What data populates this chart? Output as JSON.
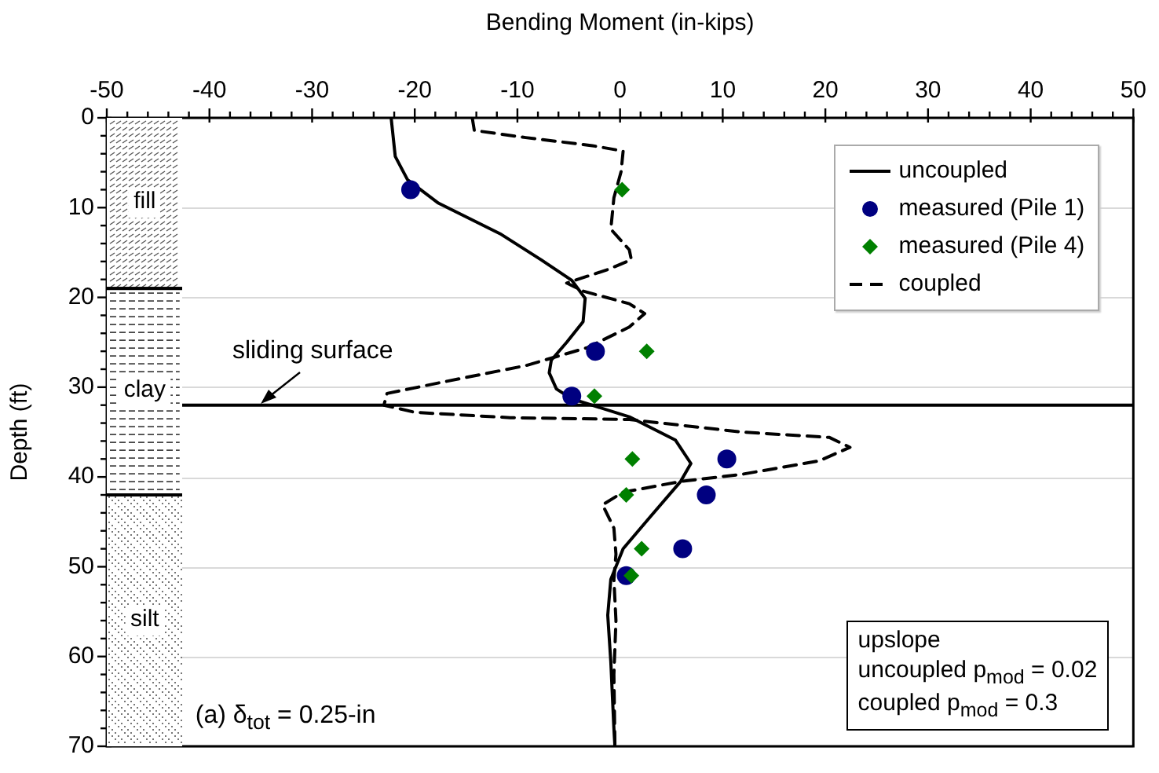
{
  "chart_data": {
    "type": "line",
    "xlabel": "Bending Moment (in-kips)",
    "ylabel": "Depth (ft)",
    "xlim": [
      -50,
      50
    ],
    "xticks": [
      -50,
      {
        "value": -48,
        "label": null
      },
      {
        "value": -46,
        "label": null
      },
      {
        "value": -44,
        "label": null
      },
      {
        "value": -42,
        "label": null
      },
      -40,
      {
        "value": -38,
        "label": null
      },
      {
        "value": -36,
        "label": null
      },
      {
        "value": -34,
        "label": null
      },
      {
        "value": -32,
        "label": null
      },
      -30,
      {
        "value": -28,
        "label": null
      },
      {
        "value": -26,
        "label": null
      },
      {
        "value": -24,
        "label": null
      },
      {
        "value": -22,
        "label": null
      },
      -20,
      {
        "value": -18,
        "label": null
      },
      {
        "value": -16,
        "label": null
      },
      {
        "value": -14,
        "label": null
      },
      {
        "value": -12,
        "label": null
      },
      -10,
      {
        "value": -8,
        "label": null
      },
      {
        "value": -6,
        "label": null
      },
      {
        "value": -4,
        "label": null
      },
      {
        "value": -2,
        "label": null
      },
      0,
      {
        "value": 2,
        "label": null
      },
      {
        "value": 4,
        "label": null
      },
      {
        "value": 6,
        "label": null
      },
      {
        "value": 8,
        "label": null
      },
      10,
      {
        "value": 12,
        "label": null
      },
      {
        "value": 14,
        "label": null
      },
      {
        "value": 16,
        "label": null
      },
      {
        "value": 18,
        "label": null
      },
      20,
      {
        "value": 22,
        "label": null
      },
      {
        "value": 24,
        "label": null
      },
      {
        "value": 26,
        "label": null
      },
      {
        "value": 28,
        "label": null
      },
      30,
      {
        "value": 32,
        "label": null
      },
      {
        "value": 34,
        "label": null
      },
      {
        "value": 36,
        "label": null
      },
      {
        "value": 38,
        "label": null
      },
      40,
      {
        "value": 42,
        "label": null
      },
      {
        "value": 44,
        "label": null
      },
      {
        "value": 46,
        "label": null
      },
      {
        "value": 48,
        "label": null
      },
      50
    ],
    "ylim": [
      70,
      0
    ],
    "yticks": [
      0,
      {
        "value": 2,
        "label": null
      },
      {
        "value": 4,
        "label": null
      },
      {
        "value": 6,
        "label": null
      },
      {
        "value": 8,
        "label": null
      },
      10,
      {
        "value": 12,
        "label": null
      },
      {
        "value": 14,
        "label": null
      },
      {
        "value": 16,
        "label": null
      },
      {
        "value": 18,
        "label": null
      },
      20,
      {
        "value": 22,
        "label": null
      },
      {
        "value": 24,
        "label": null
      },
      {
        "value": 26,
        "label": null
      },
      {
        "value": 28,
        "label": null
      },
      30,
      {
        "value": 32,
        "label": null
      },
      {
        "value": 34,
        "label": null
      },
      {
        "value": 36,
        "label": null
      },
      {
        "value": 38,
        "label": null
      },
      40,
      {
        "value": 42,
        "label": null
      },
      {
        "value": 44,
        "label": null
      },
      {
        "value": 46,
        "label": null
      },
      {
        "value": 48,
        "label": null
      },
      50,
      {
        "value": 52,
        "label": null
      },
      {
        "value": 54,
        "label": null
      },
      {
        "value": 56,
        "label": null
      },
      {
        "value": 58,
        "label": null
      },
      60,
      {
        "value": 62,
        "label": null
      },
      {
        "value": 64,
        "label": null
      },
      {
        "value": 66,
        "label": null
      },
      {
        "value": 68,
        "label": null
      },
      70
    ],
    "grid": "y",
    "legend": "top right",
    "series": [
      {
        "name": "uncoupled",
        "color": "#000000",
        "marker": "none",
        "line_style": "solid",
        "x": [
          -22.3,
          -21.9,
          -20.7,
          -17.7,
          -11.7,
          -7.7,
          -4.7,
          -3.4,
          -3.6,
          -5.2,
          -6.7,
          -6.9,
          -6.2,
          -4.7,
          0.9,
          5.4,
          6.9,
          5.9,
          2.9,
          0.3,
          -0.9,
          -1.2,
          -0.9,
          -0.6,
          -0.5
        ],
        "values": [
          0,
          4.3,
          6.9,
          9.5,
          12.9,
          15.8,
          18.1,
          20.1,
          22.7,
          25,
          27,
          28.4,
          30.2,
          31.3,
          33.3,
          35.9,
          38.5,
          40.5,
          44.5,
          48,
          51.4,
          55.4,
          60.6,
          68,
          70
        ]
      },
      {
        "name": "measured (Pile 1)",
        "type": "scatter",
        "color": "#000080",
        "marker": "circle",
        "x": [
          -20.4,
          -2.4,
          -4.7,
          10.4,
          8.4,
          6.1,
          0.6
        ],
        "values": [
          8,
          26,
          31,
          38,
          42,
          48,
          51
        ]
      },
      {
        "name": "measured (Pile 4)",
        "type": "scatter",
        "color": "#008000",
        "marker": "diamond",
        "x": [
          0.2,
          2.6,
          -2.5,
          1.2,
          0.6,
          2.1,
          1.1
        ],
        "values": [
          8,
          26,
          31,
          38,
          42,
          48,
          51
        ]
      },
      {
        "name": "coupled",
        "color": "#000000",
        "marker": "none",
        "line_style": "dashed",
        "x": [
          -14.4,
          -14.2,
          -9.2,
          -2.7,
          0.3,
          0.1,
          -0.6,
          -0.9,
          0.9,
          1.1,
          -1.2,
          -5.2,
          -3.6,
          0.9,
          2.4,
          0.9,
          -3.2,
          -9.2,
          -16.7,
          -22.7,
          -23,
          -20,
          -10.7,
          0.9,
          11.9,
          20.4,
          22.4,
          19.4,
          11.9,
          5.9,
          0.3,
          -1.7,
          -0.6,
          -0.4,
          -0.6,
          -0.4,
          -0.6,
          -0.5
        ],
        "values": [
          0,
          1.4,
          2.2,
          3.1,
          3.7,
          6,
          8.9,
          12.4,
          14.7,
          15.8,
          16.9,
          18.4,
          19.3,
          20.7,
          21.8,
          23.3,
          25.6,
          27.6,
          29.3,
          30.7,
          32,
          32.8,
          33.4,
          33.6,
          35,
          35.6,
          36.7,
          38.2,
          39.7,
          40.5,
          41.7,
          43.1,
          45.7,
          48.6,
          51.4,
          56,
          62,
          70
        ]
      }
    ],
    "ref_lines": [
      {
        "axis": "y",
        "value": 32,
        "label": "sliding surface",
        "color": "#000000"
      }
    ],
    "bands": [
      {
        "axis": "y",
        "from": 0,
        "to": 19,
        "label": "fill"
      },
      {
        "axis": "y",
        "from": 19,
        "to": 42,
        "label": "clay"
      },
      {
        "axis": "y",
        "from": 42,
        "to": 70,
        "label": "silt"
      }
    ],
    "annotations": [
      "(a) δ$_{tot}$ = 0.25-in",
      "upslope",
      "uncoupled p$_{mod}$ = 0.02",
      "coupled p$_{mod}$ = 0.3"
    ]
  }
}
